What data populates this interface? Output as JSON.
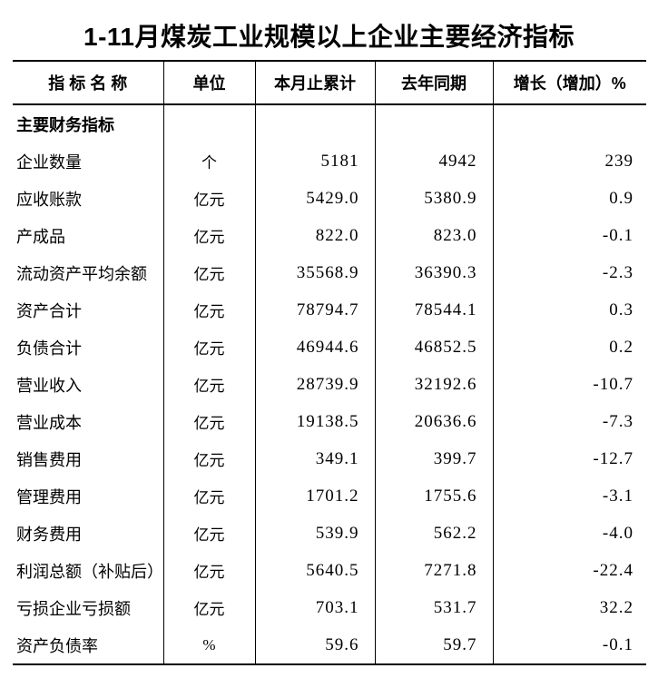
{
  "title": "1-11月煤炭工业规模以上企业主要经济指标",
  "table": {
    "columns": {
      "name": "指 标 名 称",
      "unit": "单位",
      "current": "本月止累计",
      "last_year": "去年同期",
      "growth": "增长（增加）%"
    },
    "section_header": "主要财务指标",
    "rows": [
      {
        "name": "企业数量",
        "unit": "个",
        "current": "5181",
        "last_year": "4942",
        "growth": "239"
      },
      {
        "name": "应收账款",
        "unit": "亿元",
        "current": "5429.0",
        "last_year": "5380.9",
        "growth": "0.9"
      },
      {
        "name": "产成品",
        "unit": "亿元",
        "current": "822.0",
        "last_year": "823.0",
        "growth": "-0.1"
      },
      {
        "name": "流动资产平均余额",
        "unit": "亿元",
        "current": "35568.9",
        "last_year": "36390.3",
        "growth": "-2.3"
      },
      {
        "name": "资产合计",
        "unit": "亿元",
        "current": "78794.7",
        "last_year": "78544.1",
        "growth": "0.3"
      },
      {
        "name": "负债合计",
        "unit": "亿元",
        "current": "46944.6",
        "last_year": "46852.5",
        "growth": "0.2"
      },
      {
        "name": "营业收入",
        "unit": "亿元",
        "current": "28739.9",
        "last_year": "32192.6",
        "growth": "-10.7"
      },
      {
        "name": "营业成本",
        "unit": "亿元",
        "current": "19138.5",
        "last_year": "20636.6",
        "growth": "-7.3"
      },
      {
        "name": "销售费用",
        "unit": "亿元",
        "current": "349.1",
        "last_year": "399.7",
        "growth": "-12.7"
      },
      {
        "name": "管理费用",
        "unit": "亿元",
        "current": "1701.2",
        "last_year": "1755.6",
        "growth": "-3.1"
      },
      {
        "name": "财务费用",
        "unit": "亿元",
        "current": "539.9",
        "last_year": "562.2",
        "growth": "-4.0"
      },
      {
        "name": "利润总额（补贴后）",
        "unit": "亿元",
        "current": "5640.5",
        "last_year": "7271.8",
        "growth": "-22.4"
      },
      {
        "name": "亏损企业亏损额",
        "unit": "亿元",
        "current": "703.1",
        "last_year": "531.7",
        "growth": "32.2"
      },
      {
        "name": "资产负债率",
        "unit": "%",
        "current": "59.6",
        "last_year": "59.7",
        "growth": "-0.1"
      }
    ]
  }
}
